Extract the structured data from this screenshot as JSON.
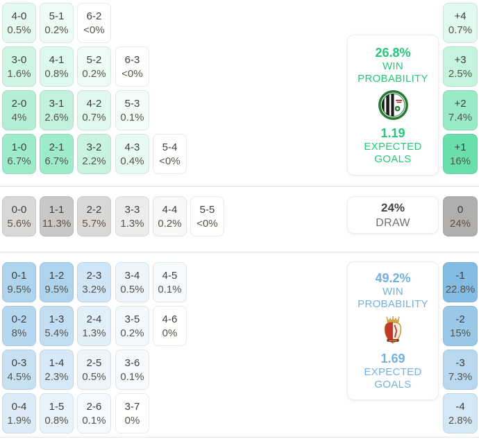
{
  "accents": {
    "home_text": "#25c778",
    "away_text": "#72b1df",
    "draw_value_text": "#434341",
    "draw_label_text": "#6f6f6d"
  },
  "tints": {
    "scale": "sqrt",
    "home": {
      "base": "#57DCA2",
      "max": 20
    },
    "draw": {
      "base": "#B1AFAD",
      "max": 24
    },
    "away": {
      "base": "#84BCE4",
      "max": 22
    }
  },
  "chart_data": {
    "type": "heatmap",
    "description": "Correct score probability matrix: home win scores (green), draws (gray), away win scores (blue), with goal-margin totals and win probability / expected goals summary cards",
    "home": {
      "card": {
        "win_pct": "26.8%",
        "win_line1": "WIN",
        "win_line2": "PROBABILITY",
        "goals": "1.19",
        "goals_line1": "EXPECTED",
        "goals_line2": "GOALS",
        "logo": "green-white-striped-club-badge"
      },
      "rows": [
        [
          {
            "score": "4-0",
            "pct": "0.5%",
            "p": 0.5
          },
          {
            "score": "5-1",
            "pct": "0.2%",
            "p": 0.2
          },
          {
            "score": "6-2",
            "pct": "<0%",
            "p": 0
          }
        ],
        [
          {
            "score": "3-0",
            "pct": "1.6%",
            "p": 1.6
          },
          {
            "score": "4-1",
            "pct": "0.8%",
            "p": 0.8
          },
          {
            "score": "5-2",
            "pct": "0.2%",
            "p": 0.2
          },
          {
            "score": "6-3",
            "pct": "<0%",
            "p": 0
          }
        ],
        [
          {
            "score": "2-0",
            "pct": "4%",
            "p": 4
          },
          {
            "score": "3-1",
            "pct": "2.6%",
            "p": 2.6
          },
          {
            "score": "4-2",
            "pct": "0.7%",
            "p": 0.7
          },
          {
            "score": "5-3",
            "pct": "0.1%",
            "p": 0.1
          }
        ],
        [
          {
            "score": "1-0",
            "pct": "6.7%",
            "p": 6.7
          },
          {
            "score": "2-1",
            "pct": "6.7%",
            "p": 6.7
          },
          {
            "score": "3-2",
            "pct": "2.2%",
            "p": 2.2
          },
          {
            "score": "4-3",
            "pct": "0.4%",
            "p": 0.4
          },
          {
            "score": "5-4",
            "pct": "<0%",
            "p": 0
          }
        ]
      ],
      "margins": [
        {
          "label": "+4",
          "pct": "0.7%",
          "p": 0.7
        },
        {
          "label": "+3",
          "pct": "2.5%",
          "p": 2.5
        },
        {
          "label": "+2",
          "pct": "7.4%",
          "p": 7.4
        },
        {
          "label": "+1",
          "pct": "16%",
          "p": 16
        }
      ]
    },
    "draw": {
      "card": {
        "pct": "24%",
        "label": "DRAW"
      },
      "rows": [
        [
          {
            "score": "0-0",
            "pct": "5.6%",
            "p": 5.6
          },
          {
            "score": "1-1",
            "pct": "11.3%",
            "p": 11.3
          },
          {
            "score": "2-2",
            "pct": "5.7%",
            "p": 5.7
          },
          {
            "score": "3-3",
            "pct": "1.3%",
            "p": 1.3
          },
          {
            "score": "4-4",
            "pct": "0.2%",
            "p": 0.2
          },
          {
            "score": "5-5",
            "pct": "<0%",
            "p": 0
          }
        ]
      ],
      "margins": [
        {
          "label": "0",
          "pct": "24%",
          "p": 24
        }
      ]
    },
    "away": {
      "card": {
        "win_pct": "49.2%",
        "win_line1": "WIN",
        "win_line2": "PROBABILITY",
        "goals": "1.69",
        "goals_line1": "EXPECTED",
        "goals_line2": "GOALS",
        "logo": "red-white-crowned-crest"
      },
      "rows": [
        [
          {
            "score": "0-1",
            "pct": "9.5%",
            "p": 9.5
          },
          {
            "score": "1-2",
            "pct": "9.5%",
            "p": 9.5
          },
          {
            "score": "2-3",
            "pct": "3.2%",
            "p": 3.2
          },
          {
            "score": "3-4",
            "pct": "0.5%",
            "p": 0.5
          },
          {
            "score": "4-5",
            "pct": "0.1%",
            "p": 0.1
          }
        ],
        [
          {
            "score": "0-2",
            "pct": "8%",
            "p": 8
          },
          {
            "score": "1-3",
            "pct": "5.4%",
            "p": 5.4
          },
          {
            "score": "2-4",
            "pct": "1.3%",
            "p": 1.3
          },
          {
            "score": "3-5",
            "pct": "0.2%",
            "p": 0.2
          },
          {
            "score": "4-6",
            "pct": "0%",
            "p": 0
          }
        ],
        [
          {
            "score": "0-3",
            "pct": "4.5%",
            "p": 4.5
          },
          {
            "score": "1-4",
            "pct": "2.3%",
            "p": 2.3
          },
          {
            "score": "2-5",
            "pct": "0.5%",
            "p": 0.5
          },
          {
            "score": "3-6",
            "pct": "0.1%",
            "p": 0.1
          }
        ],
        [
          {
            "score": "0-4",
            "pct": "1.9%",
            "p": 1.9
          },
          {
            "score": "1-5",
            "pct": "0.8%",
            "p": 0.8
          },
          {
            "score": "2-6",
            "pct": "0.1%",
            "p": 0.1
          },
          {
            "score": "3-7",
            "pct": "0%",
            "p": 0
          }
        ]
      ],
      "margins": [
        {
          "label": "-1",
          "pct": "22.8%",
          "p": 22.8
        },
        {
          "label": "-2",
          "pct": "15%",
          "p": 15
        },
        {
          "label": "-3",
          "pct": "7.3%",
          "p": 7.3
        },
        {
          "label": "-4",
          "pct": "2.8%",
          "p": 2.8
        }
      ]
    }
  }
}
